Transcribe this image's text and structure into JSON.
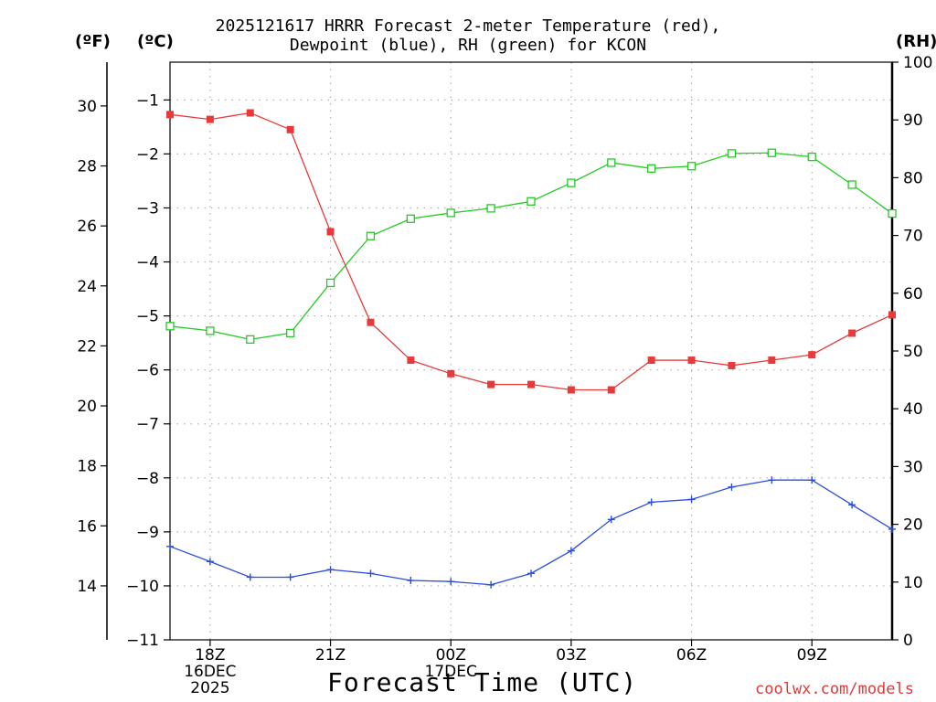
{
  "title": {
    "line1": "2025121617 HRRR Forecast 2-meter Temperature (red),",
    "line2": "Dewpoint (blue), RH (green) for KCON"
  },
  "units": {
    "fahrenheit": "(ºF)",
    "celsius": "(ºC)",
    "rh": "(RH)"
  },
  "xaxis_title": "Forecast Time (UTC)",
  "credit": "coolwx.com/models",
  "colors": {
    "temperature": "#e83a3a",
    "dewpoint": "#2b4de0",
    "rh": "#22cc22",
    "grid": "#b0b0b0",
    "axis": "#000000"
  },
  "chart_data": {
    "type": "line",
    "title": "2025121617 HRRR Forecast 2-meter Temperature (red), Dewpoint (blue), RH (green) for KCON",
    "xlabel": "Forecast Time (UTC)",
    "x": [
      17,
      18,
      19,
      20,
      21,
      22,
      23,
      24,
      25,
      26,
      27,
      28,
      29,
      30,
      31,
      32,
      33,
      34,
      35
    ],
    "xlim": [
      17,
      35
    ],
    "x_ticks": [
      {
        "x": 18,
        "lines": [
          "18Z",
          "16DEC",
          "2025"
        ]
      },
      {
        "x": 21,
        "lines": [
          "21Z"
        ]
      },
      {
        "x": 24,
        "lines": [
          "00Z",
          "17DEC"
        ]
      },
      {
        "x": 27,
        "lines": [
          "03Z"
        ]
      },
      {
        "x": 30,
        "lines": [
          "06Z"
        ]
      },
      {
        "x": 33,
        "lines": [
          "09Z"
        ]
      }
    ],
    "left_axis_celsius": {
      "label": "(ºC)",
      "ylim": [
        -11,
        -0.3
      ],
      "ticks": [
        -1,
        -2,
        -3,
        -4,
        -5,
        -6,
        -7,
        -8,
        -9,
        -10,
        -11
      ]
    },
    "left_axis_fahrenheit": {
      "label": "(ºF)",
      "ticks": [
        30,
        28,
        26,
        24,
        22,
        20,
        18,
        16,
        14
      ]
    },
    "right_axis_rh": {
      "label": "(RH)",
      "ylim": [
        0,
        100
      ],
      "ticks": [
        100,
        90,
        80,
        70,
        60,
        50,
        40,
        30,
        20,
        10,
        0
      ]
    },
    "series": [
      {
        "name": "Temperature",
        "color": "red",
        "axis": "celsius",
        "marker": "filled-square",
        "values": [
          -1.27,
          -1.36,
          -1.24,
          -1.55,
          -3.44,
          -5.12,
          -5.82,
          -6.07,
          -6.27,
          -6.27,
          -6.37,
          -6.37,
          -5.82,
          -5.82,
          -5.92,
          -5.82,
          -5.72,
          -5.32,
          -4.98
        ]
      },
      {
        "name": "Dewpoint",
        "color": "blue",
        "axis": "celsius",
        "marker": "plus",
        "values": [
          -9.27,
          -9.55,
          -9.84,
          -9.84,
          -9.7,
          -9.77,
          -9.9,
          -9.92,
          -9.98,
          -9.77,
          -9.35,
          -8.77,
          -8.45,
          -8.4,
          -8.17,
          -8.04,
          -8.04,
          -8.5,
          -8.95
        ]
      },
      {
        "name": "RH",
        "color": "green",
        "axis": "rh",
        "marker": "open-square",
        "values": [
          54.3,
          53.5,
          52,
          53.1,
          61.8,
          69.9,
          72.9,
          73.9,
          74.7,
          75.9,
          79.1,
          82.6,
          81.6,
          82,
          84.2,
          84.3,
          83.6,
          78.8,
          73.8
        ]
      }
    ]
  }
}
